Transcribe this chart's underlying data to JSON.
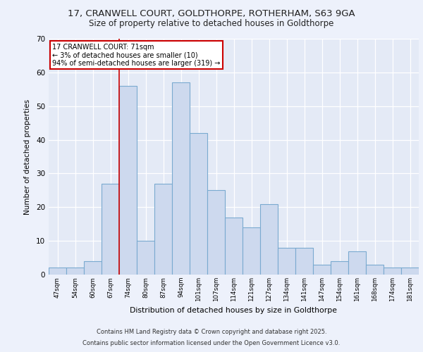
{
  "title_line1": "17, CRANWELL COURT, GOLDTHORPE, ROTHERHAM, S63 9GA",
  "title_line2": "Size of property relative to detached houses in Goldthorpe",
  "xlabel": "Distribution of detached houses by size in Goldthorpe",
  "ylabel": "Number of detached properties",
  "categories": [
    "47sqm",
    "54sqm",
    "60sqm",
    "67sqm",
    "74sqm",
    "80sqm",
    "87sqm",
    "94sqm",
    "101sqm",
    "107sqm",
    "114sqm",
    "121sqm",
    "127sqm",
    "134sqm",
    "141sqm",
    "147sqm",
    "154sqm",
    "161sqm",
    "168sqm",
    "174sqm",
    "181sqm"
  ],
  "values": [
    2,
    2,
    4,
    27,
    56,
    10,
    27,
    57,
    42,
    25,
    17,
    14,
    21,
    8,
    8,
    3,
    4,
    7,
    3,
    2,
    2
  ],
  "bar_color": "#cdd9ee",
  "bar_edge_color": "#7aaad0",
  "annotation_title": "17 CRANWELL COURT: 71sqm",
  "annotation_line2": "← 3% of detached houses are smaller (10)",
  "annotation_line3": "94% of semi-detached houses are larger (319) →",
  "annotation_box_color": "#ffffff",
  "annotation_box_edge": "#cc0000",
  "redline_bar_index": 3,
  "ylim": [
    0,
    70
  ],
  "yticks": [
    0,
    10,
    20,
    30,
    40,
    50,
    60,
    70
  ],
  "footer_line1": "Contains HM Land Registry data © Crown copyright and database right 2025.",
  "footer_line2": "Contains public sector information licensed under the Open Government Licence v3.0.",
  "bg_color": "#edf1fb",
  "plot_bg_color": "#e4eaf6",
  "grid_color": "#ffffff",
  "title_fontsize": 9.5,
  "subtitle_fontsize": 8.5
}
